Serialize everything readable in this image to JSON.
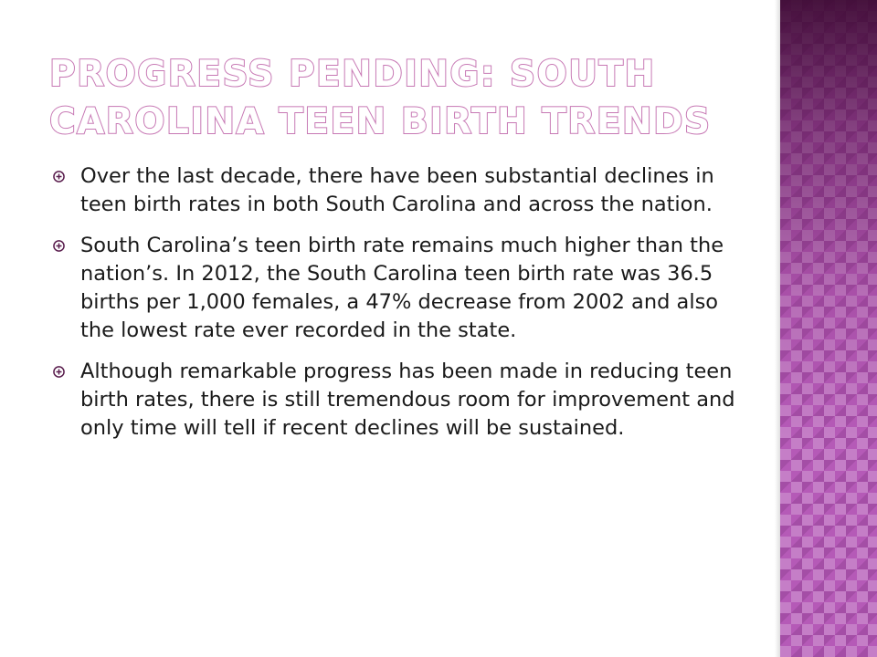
{
  "slide": {
    "title": "Progress Pending: South Carolina Teen Birth Trends",
    "bullets": [
      "Over the last decade, there have been substantial declines in teen birth rates in both South Carolina and across the nation.",
      "South Carolina’s teen birth rate remains much higher than the nation’s. In 2012, the South Carolina teen birth rate was 36.5 births per 1,000 females, a 47% decrease from 2002 and also the lowest rate ever recorded in the state.",
      "Although remarkable progress has been made in reducing teen birth rates, there is still tremendous room for improvement and only time will tell if recent declines will be sustained."
    ],
    "bullet_icon": "circled-plus-icon",
    "colors": {
      "title_outline": "#c778b4",
      "side_panel": "#b55ab7",
      "body_text": "#1a1a1a"
    }
  }
}
